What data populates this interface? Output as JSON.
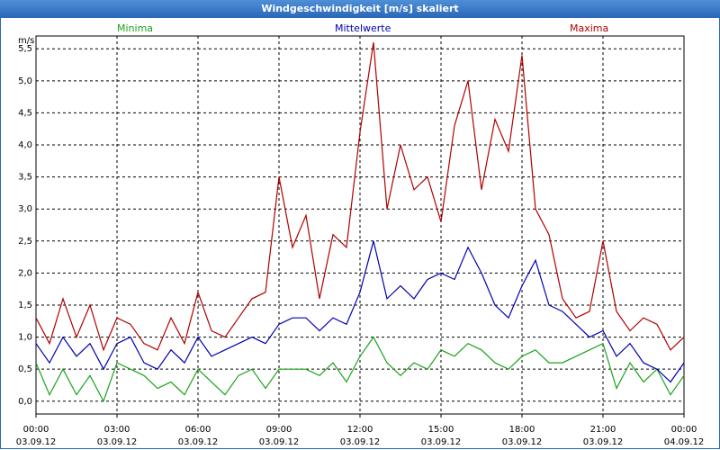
{
  "window": {
    "title": "Windgeschwindigkeit [m/s] skaliert"
  },
  "chart_data": {
    "type": "line",
    "title": "Windgeschwindigkeit [m/s] skaliert",
    "ylabel": "m/s",
    "ylim": [
      -0.2,
      5.7
    ],
    "xlim_hours": [
      0,
      24
    ],
    "yticks": [
      "0,0",
      "0,5",
      "1,0",
      "1,5",
      "2,0",
      "2,5",
      "3,0",
      "3,5",
      "4,0",
      "4,5",
      "5,0",
      "5,5"
    ],
    "ytick_values": [
      0,
      0.5,
      1,
      1.5,
      2,
      2.5,
      3,
      3.5,
      4,
      4.5,
      5,
      5.5
    ],
    "xticks": [
      {
        "time": "00:00",
        "date": "03.09.12"
      },
      {
        "time": "03:00",
        "date": "03.09.12"
      },
      {
        "time": "06:00",
        "date": "03.09.12"
      },
      {
        "time": "09:00",
        "date": "03.09.12"
      },
      {
        "time": "12:00",
        "date": "03.09.12"
      },
      {
        "time": "15:00",
        "date": "03.09.12"
      },
      {
        "time": "18:00",
        "date": "03.09.12"
      },
      {
        "time": "21:00",
        "date": "03.09.12"
      },
      {
        "time": "00:00",
        "date": "04.09.12"
      }
    ],
    "grid": true,
    "series": [
      {
        "name": "Minima",
        "color": "#1aa31a",
        "x": [
          0,
          0.5,
          1,
          1.5,
          2,
          2.5,
          3,
          3.5,
          4,
          4.5,
          5,
          5.5,
          6,
          6.5,
          7,
          7.5,
          8,
          8.5,
          9,
          9.5,
          10,
          10.5,
          11,
          11.5,
          12,
          12.5,
          13,
          13.5,
          14,
          14.5,
          15,
          15.5,
          16,
          16.5,
          17,
          17.5,
          18,
          18.5,
          19,
          19.5,
          20,
          20.5,
          21,
          21.5,
          22,
          22.5,
          23,
          23.5,
          24
        ],
        "values": [
          0.6,
          0.1,
          0.5,
          0.1,
          0.4,
          0.0,
          0.6,
          0.5,
          0.4,
          0.2,
          0.3,
          0.1,
          0.5,
          0.3,
          0.1,
          0.4,
          0.5,
          0.2,
          0.5,
          0.5,
          0.5,
          0.4,
          0.6,
          0.3,
          0.7,
          1.0,
          0.6,
          0.4,
          0.6,
          0.5,
          0.8,
          0.7,
          0.9,
          0.8,
          0.6,
          0.5,
          0.7,
          0.8,
          0.6,
          0.6,
          0.7,
          0.8,
          0.9,
          0.2,
          0.6,
          0.3,
          0.5,
          0.1,
          0.4
        ]
      },
      {
        "name": "Mittelwerte",
        "color": "#0000b0",
        "x": [
          0,
          0.5,
          1,
          1.5,
          2,
          2.5,
          3,
          3.5,
          4,
          4.5,
          5,
          5.5,
          6,
          6.5,
          7,
          7.5,
          8,
          8.5,
          9,
          9.5,
          10,
          10.5,
          11,
          11.5,
          12,
          12.5,
          13,
          13.5,
          14,
          14.5,
          15,
          15.5,
          16,
          16.5,
          17,
          17.5,
          18,
          18.5,
          19,
          19.5,
          20,
          20.5,
          21,
          21.5,
          22,
          22.5,
          23,
          23.5,
          24
        ],
        "values": [
          0.9,
          0.6,
          1.0,
          0.7,
          0.9,
          0.5,
          0.9,
          1.0,
          0.6,
          0.5,
          0.8,
          0.6,
          1.0,
          0.7,
          0.8,
          0.9,
          1.0,
          0.9,
          1.2,
          1.3,
          1.3,
          1.1,
          1.3,
          1.2,
          1.7,
          2.5,
          1.6,
          1.8,
          1.6,
          1.9,
          2.0,
          1.9,
          2.4,
          2.0,
          1.5,
          1.3,
          1.8,
          2.2,
          1.5,
          1.4,
          1.2,
          1.0,
          1.1,
          0.7,
          0.9,
          0.6,
          0.5,
          0.3,
          0.6
        ]
      },
      {
        "name": "Maxima",
        "color": "#b00000",
        "x": [
          0,
          0.5,
          1,
          1.5,
          2,
          2.5,
          3,
          3.5,
          4,
          4.5,
          5,
          5.5,
          6,
          6.5,
          7,
          7.5,
          8,
          8.5,
          9,
          9.5,
          10,
          10.5,
          11,
          11.5,
          12,
          12.5,
          13,
          13.5,
          14,
          14.5,
          15,
          15.5,
          16,
          16.5,
          17,
          17.5,
          18,
          18.5,
          19,
          19.5,
          20,
          20.5,
          21,
          21.5,
          22,
          22.5,
          23,
          23.5,
          24
        ],
        "values": [
          1.3,
          0.9,
          1.6,
          1.0,
          1.5,
          0.8,
          1.3,
          1.2,
          0.9,
          0.8,
          1.3,
          0.9,
          1.7,
          1.1,
          1.0,
          1.3,
          1.6,
          1.7,
          3.5,
          2.4,
          2.9,
          1.6,
          2.6,
          2.4,
          4.2,
          5.6,
          3.0,
          4.0,
          3.3,
          3.5,
          2.8,
          4.3,
          5.0,
          3.3,
          4.4,
          3.9,
          5.4,
          3.0,
          2.6,
          1.6,
          1.3,
          1.4,
          2.5,
          1.4,
          1.1,
          1.3,
          1.2,
          0.8,
          1.0
        ]
      }
    ]
  }
}
